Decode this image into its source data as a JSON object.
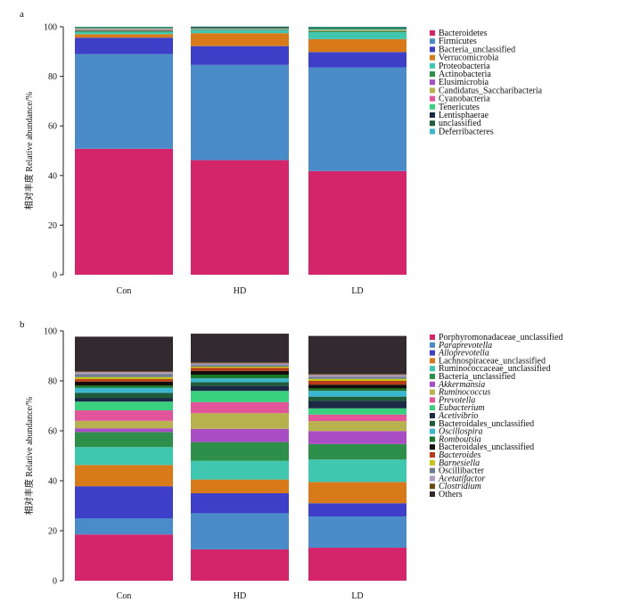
{
  "chart_data": [
    {
      "type": "bar",
      "stacked": true,
      "panel_label": "a",
      "ylabel": "相对丰度  Relative abundance/%",
      "ylim": [
        0,
        100
      ],
      "yticks": [
        "0",
        "20",
        "40",
        "60",
        "80",
        "100"
      ],
      "categories": [
        "Con",
        "HD",
        "LD"
      ],
      "series": [
        {
          "name": "Bacteroidetes",
          "color": "#d4256a",
          "values": [
            50.8,
            46.2,
            41.8
          ]
        },
        {
          "name": "Firmicutes",
          "color": "#4a8cc9",
          "values": [
            38.2,
            38.4,
            41.8
          ]
        },
        {
          "name": "Bacteria_unclassified",
          "color": "#3e3fc8",
          "values": [
            6.6,
            7.6,
            6.2
          ]
        },
        {
          "name": "Verrucomicrobia",
          "color": "#d97a1a",
          "values": [
            1.4,
            5.2,
            5.2
          ]
        },
        {
          "name": "Proteobacteria",
          "color": "#3fc7b0",
          "values": [
            0.9,
            1.2,
            2.8
          ]
        },
        {
          "name": "Actinobacteria",
          "color": "#2e8f4a",
          "values": [
            0.5,
            0.2,
            0.4
          ]
        },
        {
          "name": "Elusimicrobia",
          "color": "#a94dc5",
          "values": [
            0.3,
            0.1,
            0.1
          ]
        },
        {
          "name": "Candidatus_Saccharibacteria",
          "color": "#b7b24d",
          "values": [
            0.3,
            0.1,
            0.3
          ]
        },
        {
          "name": "Cyanobacteria",
          "color": "#e3559a",
          "values": [
            0.2,
            0.1,
            0.1
          ]
        },
        {
          "name": "Tenericutes",
          "color": "#3ad17e",
          "values": [
            0.3,
            0.3,
            0.5
          ]
        },
        {
          "name": "Lentisphaerae",
          "color": "#1b2a45",
          "values": [
            0.1,
            0.2,
            0.1
          ]
        },
        {
          "name": "unclassified",
          "color": "#1f5c3c",
          "values": [
            0.3,
            0.4,
            0.5
          ]
        },
        {
          "name": "Deferribacteres",
          "color": "#3ab7cf",
          "values": [
            0.1,
            0.1,
            0.2
          ]
        }
      ],
      "top_remainder_color": "#a9a3bf"
    },
    {
      "type": "bar",
      "stacked": true,
      "panel_label": "b",
      "ylabel": "相对丰度  Relative abundance/%",
      "ylim": [
        0,
        100
      ],
      "yticks": [
        "0",
        "20",
        "40",
        "60",
        "80",
        "100"
      ],
      "categories": [
        "Con",
        "HD",
        "LD"
      ],
      "series": [
        {
          "name": "Porphyromonadaceae_unclassified",
          "italic": false,
          "color": "#d4256a",
          "values": [
            18.5,
            12.5,
            13.2
          ]
        },
        {
          "name": "Paraprevotella",
          "italic": true,
          "color": "#4a8cc9",
          "values": [
            6.5,
            14.5,
            12.5
          ]
        },
        {
          "name": "Alloprevotella",
          "italic": true,
          "color": "#3e3fc8",
          "values": [
            12.8,
            8.0,
            5.3
          ]
        },
        {
          "name": "Lachnospiraceae_unclassified",
          "italic": false,
          "color": "#d97a1a",
          "values": [
            8.5,
            5.5,
            8.5
          ]
        },
        {
          "name": "Ruminococcaceae_unclassified",
          "italic": false,
          "color": "#3fc7b0",
          "values": [
            7.2,
            7.5,
            9.0
          ]
        },
        {
          "name": "Bacteria_unclassified",
          "italic": false,
          "color": "#2e8f4a",
          "values": [
            6.0,
            7.5,
            6.2
          ]
        },
        {
          "name": "Akkermansia",
          "italic": true,
          "color": "#a94dc5",
          "values": [
            1.5,
            5.3,
            5.2
          ]
        },
        {
          "name": "Ruminococcus",
          "italic": true,
          "color": "#b7b24d",
          "values": [
            3.0,
            6.3,
            4.0
          ]
        },
        {
          "name": "Prevotella",
          "italic": true,
          "color": "#e3559a",
          "values": [
            4.2,
            4.4,
            2.6
          ]
        },
        {
          "name": "Eubacterium",
          "italic": true,
          "color": "#3ad17e",
          "values": [
            3.5,
            4.5,
            2.5
          ]
        },
        {
          "name": "Acetivibrio",
          "italic": true,
          "color": "#1b2a45",
          "values": [
            1.5,
            2.0,
            3.0
          ]
        },
        {
          "name": "Bacteroidales_unclassified",
          "italic": false,
          "color": "#1f5c3c",
          "values": [
            2.0,
            1.5,
            1.7
          ]
        },
        {
          "name": "Oscillospira",
          "italic": true,
          "color": "#3ab7cf",
          "values": [
            2.0,
            1.5,
            2.3
          ]
        },
        {
          "name": "Romboutsia",
          "italic": true,
          "color": "#19762a",
          "values": [
            1.0,
            1.5,
            1.0
          ]
        },
        {
          "name": "Bacteroidales_unclassified",
          "italic": false,
          "color": "#150c0c",
          "values": [
            1.5,
            1.5,
            1.5
          ]
        },
        {
          "name": "Bacteroides",
          "italic": true,
          "color": "#b83a16",
          "values": [
            1.0,
            1.2,
            1.5
          ]
        },
        {
          "name": "Barnesiella",
          "italic": true,
          "color": "#c4c418",
          "values": [
            0.8,
            0.5,
            0.8
          ]
        },
        {
          "name": "Oscillibacter",
          "italic": false,
          "color": "#6d7d8d",
          "values": [
            1.2,
            0.7,
            0.9
          ]
        },
        {
          "name": "Acetatifactor",
          "italic": true,
          "color": "#b09ac0",
          "values": [
            0.8,
            0.6,
            0.7
          ]
        },
        {
          "name": "Clostridium",
          "italic": true,
          "color": "#6a4a12",
          "values": [
            0.4,
            0.4,
            0.4
          ]
        },
        {
          "name": "Others",
          "italic": false,
          "color": "#332a30",
          "values": [
            13.8,
            11.5,
            15.2
          ]
        }
      ]
    }
  ]
}
